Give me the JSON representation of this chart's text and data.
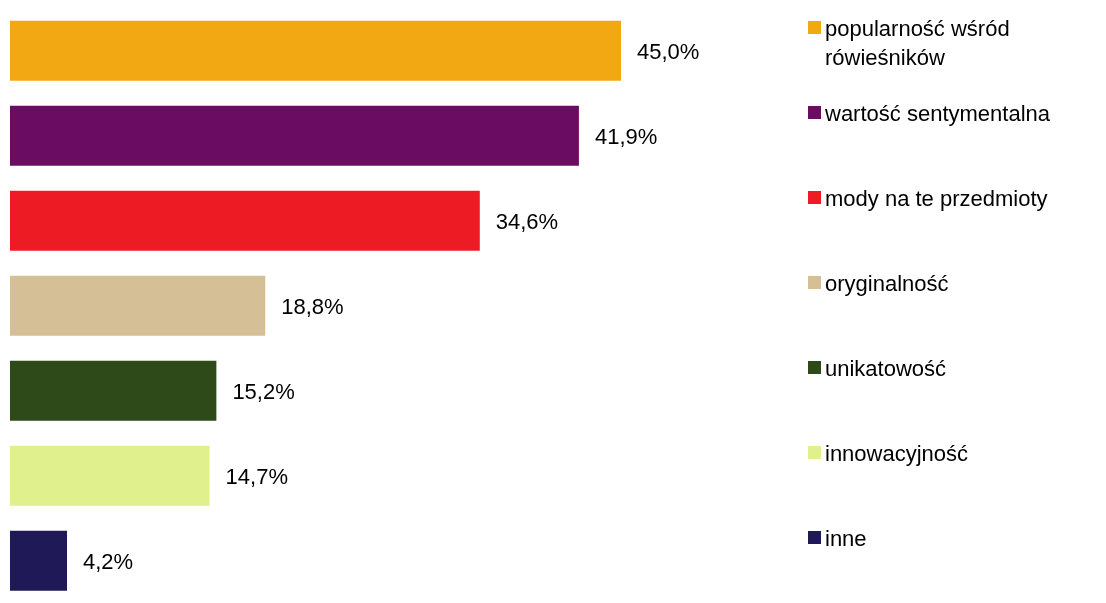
{
  "chart_data": {
    "type": "bar",
    "orientation": "horizontal",
    "stacked": true,
    "categories": [
      null,
      null,
      null,
      null,
      null,
      null,
      null
    ],
    "series": [
      {
        "name": "popularność wśród rówieśników",
        "color": "#f2a813",
        "values": [
          45.0,
          null,
          null,
          null,
          null,
          null,
          null
        ],
        "value_labels": [
          "45,0%",
          null,
          null,
          null,
          null,
          null,
          null
        ]
      },
      {
        "name": "wartość sentymentalna",
        "color": "#6b0c63",
        "values": [
          null,
          41.9,
          null,
          null,
          null,
          null,
          null
        ],
        "value_labels": [
          null,
          "41,9%",
          null,
          null,
          null,
          null,
          null
        ]
      },
      {
        "name": "mody na te przedmioty",
        "color": "#ed1c24",
        "values": [
          null,
          null,
          34.6,
          null,
          null,
          null,
          null
        ],
        "value_labels": [
          null,
          null,
          "34,6%",
          null,
          null,
          null,
          null
        ]
      },
      {
        "name": "oryginalność",
        "color": "#d4bf97",
        "values": [
          null,
          null,
          null,
          18.8,
          null,
          null,
          null
        ],
        "value_labels": [
          null,
          null,
          null,
          "18,8%",
          null,
          null,
          null
        ]
      },
      {
        "name": "unikatowość",
        "color": "#2e4a18",
        "values": [
          null,
          null,
          null,
          null,
          15.2,
          null,
          null
        ],
        "value_labels": [
          null,
          null,
          null,
          null,
          "15,2%",
          null,
          null
        ]
      },
      {
        "name": "innowacyjność",
        "color": "#e0f08c",
        "values": [
          null,
          null,
          null,
          null,
          null,
          14.7,
          null
        ],
        "value_labels": [
          null,
          null,
          null,
          null,
          null,
          "14,7%",
          null
        ]
      },
      {
        "name": "inne",
        "color": "#1f1a57",
        "values": [
          null,
          null,
          null,
          null,
          null,
          null,
          4.2
        ],
        "value_labels": [
          null,
          null,
          null,
          null,
          null,
          null,
          "4,2%"
        ]
      }
    ],
    "tick_labels": false,
    "legend": "right",
    "grid": false
  }
}
